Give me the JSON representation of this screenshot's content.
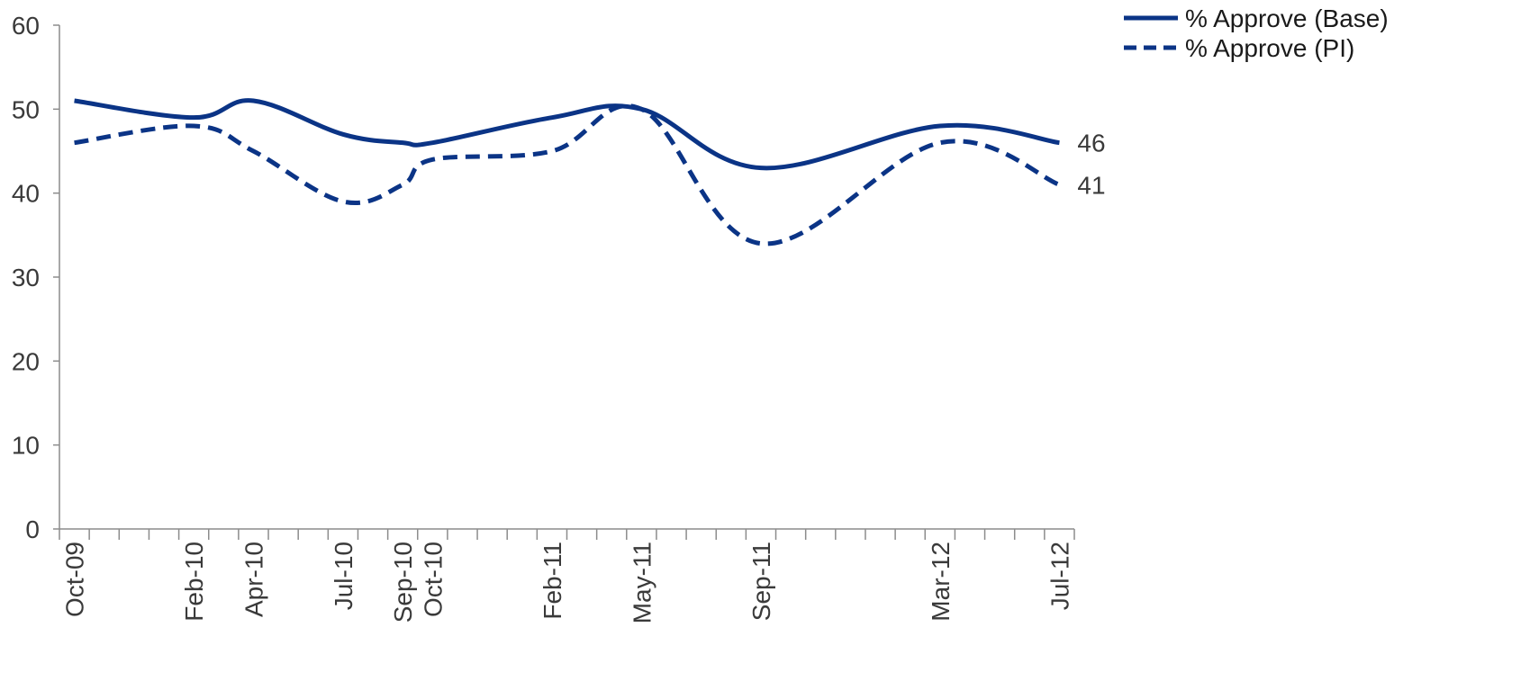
{
  "chart_data": {
    "type": "line",
    "x_months": [
      "2009-10",
      "2009-11",
      "2009-12",
      "2010-01",
      "2010-02",
      "2010-03",
      "2010-04",
      "2010-05",
      "2010-06",
      "2010-07",
      "2010-08",
      "2010-09",
      "2010-10",
      "2010-11",
      "2010-12",
      "2011-01",
      "2011-02",
      "2011-03",
      "2011-04",
      "2011-05",
      "2011-06",
      "2011-07",
      "2011-08",
      "2011-09",
      "2011-10",
      "2011-11",
      "2011-12",
      "2012-01",
      "2012-02",
      "2012-03",
      "2012-04",
      "2012-05",
      "2012-06",
      "2012-07"
    ],
    "x_tick_labels": [
      {
        "label": "Oct-09",
        "month": "2009-10"
      },
      {
        "label": "Feb-10",
        "month": "2010-02"
      },
      {
        "label": "Apr-10",
        "month": "2010-04"
      },
      {
        "label": "Jul-10",
        "month": "2010-07"
      },
      {
        "label": "Sep-10",
        "month": "2010-09"
      },
      {
        "label": "Oct-10",
        "month": "2010-10"
      },
      {
        "label": "Feb-11",
        "month": "2011-02"
      },
      {
        "label": "May-11",
        "month": "2011-05"
      },
      {
        "label": "Sep-11",
        "month": "2011-09"
      },
      {
        "label": "Mar-12",
        "month": "2012-03"
      },
      {
        "label": "Jul-12",
        "month": "2012-07"
      }
    ],
    "ylim": [
      0,
      60
    ],
    "y_ticks": [
      0,
      10,
      20,
      30,
      40,
      50,
      60
    ],
    "grid": false,
    "legend_position": "top-right",
    "series": [
      {
        "name": "% Approve (Base)",
        "style": "solid",
        "color": "#0b3486",
        "points": [
          {
            "x": "2009-10",
            "y": 51
          },
          {
            "x": "2010-02",
            "y": 49
          },
          {
            "x": "2010-04",
            "y": 51
          },
          {
            "x": "2010-07",
            "y": 47
          },
          {
            "x": "2010-09",
            "y": 46
          },
          {
            "x": "2010-10",
            "y": 46
          },
          {
            "x": "2011-02",
            "y": 49
          },
          {
            "x": "2011-05",
            "y": 50
          },
          {
            "x": "2011-09",
            "y": 43
          },
          {
            "x": "2012-03",
            "y": 48
          },
          {
            "x": "2012-07",
            "y": 46
          }
        ],
        "end_label": "46"
      },
      {
        "name": "% Approve (PI)",
        "style": "dashed",
        "color": "#0b3486",
        "points": [
          {
            "x": "2009-10",
            "y": 46
          },
          {
            "x": "2010-02",
            "y": 48
          },
          {
            "x": "2010-04",
            "y": 45
          },
          {
            "x": "2010-07",
            "y": 39
          },
          {
            "x": "2010-09",
            "y": 41
          },
          {
            "x": "2010-10",
            "y": 44
          },
          {
            "x": "2011-02",
            "y": 45
          },
          {
            "x": "2011-05",
            "y": 50
          },
          {
            "x": "2011-09",
            "y": 34
          },
          {
            "x": "2012-03",
            "y": 46
          },
          {
            "x": "2012-07",
            "y": 41
          }
        ],
        "end_label": "41"
      }
    ]
  }
}
